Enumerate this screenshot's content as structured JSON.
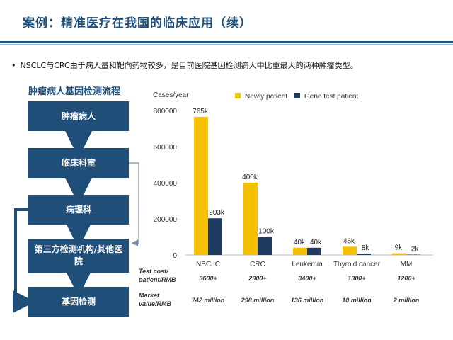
{
  "header": {
    "title": "案例：精准医疗在我国的临床应用（续）"
  },
  "bullet": {
    "text": "NSCLC与CRC由于病人量和靶向药物较多，是目前医院基因检测病人中比重最大的两种肿瘤类型。"
  },
  "flow": {
    "title": "肿瘤病人基因检测流程",
    "steps": [
      "肿瘤病人",
      "临床科室",
      "病理科",
      "第三方检测机构/其他医院",
      "基因检测"
    ]
  },
  "chart_data": {
    "type": "bar",
    "ylabel": "Cases/year",
    "categories": [
      "NSCLC",
      "CRC",
      "Leukemia",
      "Thyroid cancer",
      "MM"
    ],
    "series": [
      {
        "name": "Newly patient",
        "color": "#f5c000",
        "values": [
          765000,
          400000,
          40000,
          46000,
          9000
        ],
        "labels": [
          "765k",
          "400k",
          "40k",
          "46k",
          "9k"
        ]
      },
      {
        "name": "Gene test patient",
        "color": "#1f3a5f",
        "values": [
          203000,
          100000,
          40000,
          8000,
          2000
        ],
        "labels": [
          "203k",
          "100k",
          "40k",
          "8k",
          "2k"
        ]
      }
    ],
    "yticks": [
      "800000",
      "600000",
      "400000",
      "200000",
      "0"
    ],
    "ylim": [
      0,
      800000
    ],
    "legend": "top",
    "table": {
      "rows": [
        {
          "label": "Test cost/ patient/RMB",
          "values": [
            "3600+",
            "2900+",
            "3400+",
            "1300+",
            "1200+"
          ]
        },
        {
          "label": "Market value/RMB",
          "values": [
            "742 million",
            "298 million",
            "136 million",
            "10 million",
            "2 million"
          ]
        }
      ]
    }
  }
}
